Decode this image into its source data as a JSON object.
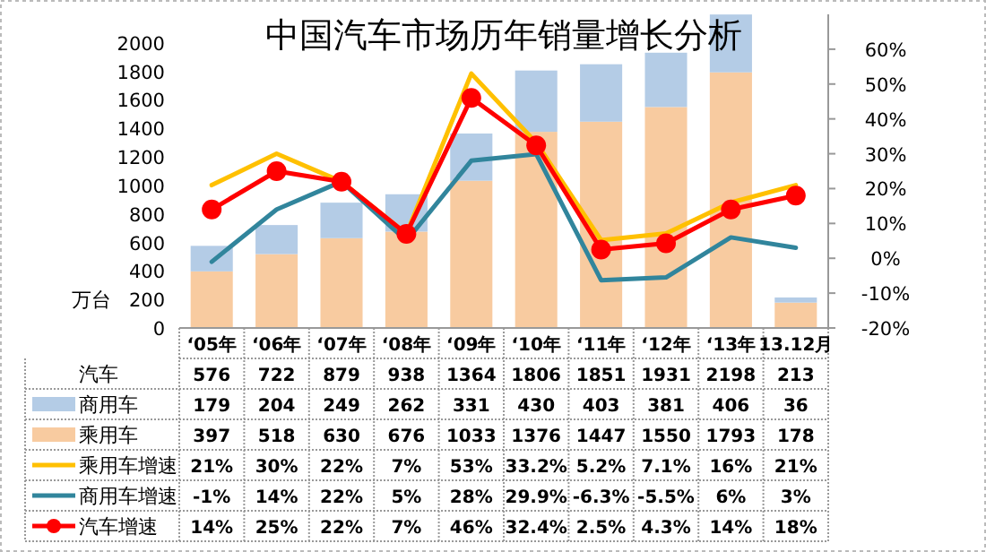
{
  "chart_data": {
    "type": "bar",
    "title": "中国汽车市场历年销量增长分析",
    "ylabel": "万台",
    "stacked": true,
    "legend": "bottom",
    "categories": [
      "‘05年",
      "‘06年",
      "‘07年",
      "‘08年",
      "‘09年",
      "‘10年",
      "‘11年",
      "‘12年",
      "‘13年",
      "13.12月"
    ],
    "ylim": [
      0,
      2200
    ],
    "yticks": [
      0,
      200,
      400,
      600,
      800,
      1000,
      1200,
      1400,
      1600,
      1800,
      2000
    ],
    "y2lim": [
      -20,
      70
    ],
    "y2ticks": [
      {
        "value": -20,
        "label": "-20%"
      },
      {
        "value": -10,
        "label": "-10%"
      },
      {
        "value": 0,
        "label": "0%"
      },
      {
        "value": 10,
        "label": "10%"
      },
      {
        "value": 20,
        "label": "20%"
      },
      {
        "value": 30,
        "label": "30%"
      },
      {
        "value": 40,
        "label": "40%"
      },
      {
        "value": 50,
        "label": "50%"
      },
      {
        "value": 60,
        "label": "60%"
      }
    ],
    "annotations": [
      "汽车"
    ],
    "totals": [
      "576",
      "722",
      "879",
      "938",
      "1364",
      "1806",
      "1851",
      "1931",
      "2198",
      "213"
    ],
    "series": [
      {
        "name": "乘用车",
        "color": "#f8cba0",
        "values": [
          397,
          518,
          630,
          676,
          1033,
          1376,
          1447,
          1550,
          1793,
          178
        ],
        "value_labels": [
          "397",
          "518",
          "630",
          "676",
          "1033",
          "1376",
          "1447",
          "1550",
          "1793",
          "178"
        ]
      },
      {
        "name": "商用车",
        "color": "#b4cce6",
        "values": [
          179,
          204,
          249,
          262,
          331,
          430,
          403,
          381,
          406,
          36
        ],
        "value_labels": [
          "179",
          "204",
          "249",
          "262",
          "331",
          "430",
          "403",
          "381",
          "406",
          "36"
        ]
      },
      {
        "name": "乘用车增速",
        "type": "line",
        "axis": "y2",
        "color": "#ffc000",
        "marker": "none",
        "values": [
          21,
          30,
          22,
          7,
          53,
          33.2,
          5.2,
          7.1,
          16,
          21
        ],
        "value_labels": [
          "21%",
          "30%",
          "22%",
          "7%",
          "53%",
          "33.2%",
          "5.2%",
          "7.1%",
          "16%",
          "21%"
        ]
      },
      {
        "name": "商用车增速",
        "type": "line",
        "axis": "y2",
        "color": "#31859c",
        "marker": "none",
        "values": [
          -1,
          14,
          22,
          5,
          28,
          29.9,
          -6.3,
          -5.5,
          6,
          3
        ],
        "value_labels": [
          "-1%",
          "14%",
          "22%",
          "5%",
          "28%",
          "29.9%",
          "-6.3%",
          "-5.5%",
          "6%",
          "3%"
        ]
      },
      {
        "name": "汽车增速",
        "type": "line",
        "axis": "y2",
        "color": "#ff0000",
        "marker": "circle",
        "values": [
          14,
          25,
          22,
          7,
          46,
          32.4,
          2.5,
          4.3,
          14,
          18
        ],
        "value_labels": [
          "14%",
          "25%",
          "22%",
          "7%",
          "46%",
          "32.4%",
          "2.5%",
          "4.3%",
          "14%",
          "18%"
        ]
      }
    ]
  }
}
